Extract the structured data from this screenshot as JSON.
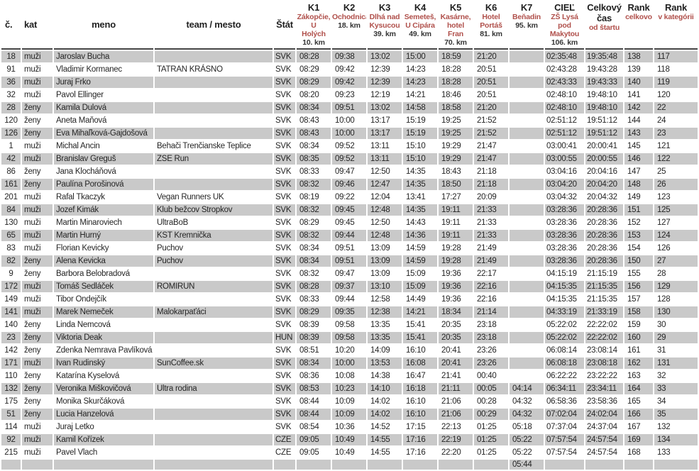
{
  "table": {
    "columns": [
      {
        "key": "cislo",
        "title": "č.",
        "loc": "",
        "km": ""
      },
      {
        "key": "kat",
        "title": "kat",
        "loc": "",
        "km": ""
      },
      {
        "key": "meno",
        "title": "meno",
        "loc": "",
        "km": ""
      },
      {
        "key": "team",
        "title": "team / mesto",
        "loc": "",
        "km": ""
      },
      {
        "key": "stat",
        "title": "Štát",
        "loc": "",
        "km": ""
      },
      {
        "key": "k1",
        "title": "K1",
        "loc": "Zákopčie, U\nHolých",
        "km": "10. km"
      },
      {
        "key": "k2",
        "title": "K2",
        "loc": "Ochodnica",
        "km": "18. km"
      },
      {
        "key": "k3",
        "title": "K3",
        "loc": "Dlhá nad\nKysucou",
        "km": "39. km"
      },
      {
        "key": "k4",
        "title": "K4",
        "loc": "Semeteš,\nU Cipára",
        "km": "49. km"
      },
      {
        "key": "k5",
        "title": "K5",
        "loc": "Kasárne,\nhotel Fran",
        "km": "70. km"
      },
      {
        "key": "k6",
        "title": "K6",
        "loc": "Hotel\nPortáš",
        "km": "81. km"
      },
      {
        "key": "k7",
        "title": "K7",
        "loc": "Beňadin",
        "km": "95. km"
      },
      {
        "key": "ciel",
        "title": "CIEĽ",
        "loc": "ZŠ Lysá\npod\nMakytou",
        "km": "106. km"
      },
      {
        "key": "celkovy",
        "title": "Celkový čas",
        "loc": "od štartu",
        "km": ""
      },
      {
        "key": "rank",
        "title": "Rank",
        "loc": "celkovo",
        "km": ""
      },
      {
        "key": "rankkat",
        "title": "Rank",
        "loc": "v kategórii",
        "km": ""
      }
    ],
    "rows": [
      [
        "18",
        "muži",
        "Jaroslav Bucha",
        "",
        "SVK",
        "08:28",
        "09:38",
        "13:02",
        "15:00",
        "18:59",
        "21:20",
        "",
        "02:35:48",
        "19:35:48",
        "138",
        "117"
      ],
      [
        "91",
        "muži",
        "Vladimir Kormanec",
        "TATRAN KRÁSNO",
        "SVK",
        "08:29",
        "09:42",
        "12:39",
        "14:23",
        "18:28",
        "20:51",
        "",
        "02:43:28",
        "19:43:28",
        "139",
        "118"
      ],
      [
        "36",
        "muži",
        "Juraj Frko",
        "",
        "SVK",
        "08:29",
        "09:42",
        "12:39",
        "14:23",
        "18:28",
        "20:51",
        "",
        "02:43:33",
        "19:43:33",
        "140",
        "119"
      ],
      [
        "32",
        "muži",
        "Pavol Ellinger",
        "",
        "SVK",
        "08:20",
        "09:23",
        "12:19",
        "14:21",
        "18:46",
        "20:51",
        "",
        "02:48:10",
        "19:48:10",
        "141",
        "120"
      ],
      [
        "28",
        "ženy",
        "Kamila Dulová",
        "",
        "SVK",
        "08:34",
        "09:51",
        "13:02",
        "14:58",
        "18:58",
        "21:20",
        "",
        "02:48:10",
        "19:48:10",
        "142",
        "22"
      ],
      [
        "120",
        "ženy",
        "Aneta Maňová",
        "",
        "SVK",
        "08:43",
        "10:00",
        "13:17",
        "15:19",
        "19:25",
        "21:52",
        "",
        "02:51:12",
        "19:51:12",
        "144",
        "24"
      ],
      [
        "126",
        "ženy",
        "Eva Mihaľková-Gajdošová",
        "",
        "SVK",
        "08:43",
        "10:00",
        "13:17",
        "15:19",
        "19:25",
        "21:52",
        "",
        "02:51:12",
        "19:51:12",
        "143",
        "23"
      ],
      [
        "1",
        "muži",
        "Michal Ancin",
        "Behači Trenčianske Teplice",
        "SVK",
        "08:34",
        "09:52",
        "13:11",
        "15:10",
        "19:29",
        "21:47",
        "",
        "03:00:41",
        "20:00:41",
        "145",
        "121"
      ],
      [
        "42",
        "muži",
        "Branislav Greguš",
        "ZSE Run",
        "SVK",
        "08:35",
        "09:52",
        "13:11",
        "15:10",
        "19:29",
        "21:47",
        "",
        "03:00:55",
        "20:00:55",
        "146",
        "122"
      ],
      [
        "86",
        "ženy",
        "Jana Klocháňová",
        "",
        "SVK",
        "08:33",
        "09:47",
        "12:50",
        "14:35",
        "18:43",
        "21:18",
        "",
        "03:04:16",
        "20:04:16",
        "147",
        "25"
      ],
      [
        "161",
        "ženy",
        "Paulína Porošinová",
        "",
        "SVK",
        "08:32",
        "09:46",
        "12:47",
        "14:35",
        "18:50",
        "21:18",
        "",
        "03:04:20",
        "20:04:20",
        "148",
        "26"
      ],
      [
        "201",
        "muži",
        "Rafal Tkaczyk",
        "Vegan Runners UK",
        "SVK",
        "08:19",
        "09:22",
        "12:04",
        "13:41",
        "17:27",
        "20:09",
        "",
        "03:04:32",
        "20:04:32",
        "149",
        "123"
      ],
      [
        "84",
        "muži",
        "Jozef Kimák",
        "Klub bežcov Stropkov",
        "SVK",
        "08:32",
        "09:45",
        "12:48",
        "14:35",
        "19:11",
        "21:33",
        "",
        "03:28:36",
        "20:28:36",
        "151",
        "125"
      ],
      [
        "130",
        "muži",
        "Martin Minaroviech",
        "UltraBoB",
        "SVK",
        "08:29",
        "09:45",
        "12:50",
        "14:43",
        "19:11",
        "21:33",
        "",
        "03:28:36",
        "20:28:36",
        "152",
        "127"
      ],
      [
        "65",
        "muži",
        "Martin Hurný",
        "KST Kremnička",
        "SVK",
        "08:32",
        "09:44",
        "12:48",
        "14:36",
        "19:11",
        "21:33",
        "",
        "03:28:36",
        "20:28:36",
        "153",
        "124"
      ],
      [
        "83",
        "muži",
        "Florian Kevicky",
        "Puchov",
        "SVK",
        "08:34",
        "09:51",
        "13:09",
        "14:59",
        "19:28",
        "21:49",
        "",
        "03:28:36",
        "20:28:36",
        "154",
        "126"
      ],
      [
        "82",
        "ženy",
        "Alena Kevicka",
        "Puchov",
        "SVK",
        "08:34",
        "09:51",
        "13:09",
        "14:59",
        "19:28",
        "21:49",
        "",
        "03:28:36",
        "20:28:36",
        "150",
        "27"
      ],
      [
        "9",
        "ženy",
        "Barbora Belobradová",
        "",
        "SVK",
        "08:32",
        "09:47",
        "13:09",
        "15:09",
        "19:36",
        "22:17",
        "",
        "04:15:19",
        "21:15:19",
        "155",
        "28"
      ],
      [
        "172",
        "muži",
        "Tomáš Sedláček",
        "ROMIRUN",
        "SVK",
        "08:28",
        "09:37",
        "13:10",
        "15:09",
        "19:36",
        "22:16",
        "",
        "04:15:35",
        "21:15:35",
        "156",
        "129"
      ],
      [
        "149",
        "muži",
        "Tibor Ondejčík",
        "",
        "SVK",
        "08:33",
        "09:44",
        "12:58",
        "14:49",
        "19:36",
        "22:16",
        "",
        "04:15:35",
        "21:15:35",
        "157",
        "128"
      ],
      [
        "141",
        "muži",
        "Marek Nemeček",
        "Malokarpaťáci",
        "SVK",
        "08:29",
        "09:35",
        "12:38",
        "14:21",
        "18:34",
        "21:14",
        "",
        "04:33:19",
        "21:33:19",
        "158",
        "130"
      ],
      [
        "140",
        "ženy",
        "Linda Nemcová",
        "",
        "SVK",
        "08:39",
        "09:58",
        "13:35",
        "15:41",
        "20:35",
        "23:18",
        "",
        "05:22:02",
        "22:22:02",
        "159",
        "30"
      ],
      [
        "23",
        "ženy",
        "Viktoria Deak",
        "",
        "HUN",
        "08:39",
        "09:58",
        "13:35",
        "15:41",
        "20:35",
        "23:18",
        "",
        "05:22:02",
        "22:22:02",
        "160",
        "29"
      ],
      [
        "142",
        "ženy",
        "Zdenka Nemrava Pavlíková",
        "",
        "SVK",
        "08:51",
        "10:20",
        "14:09",
        "16:10",
        "20:41",
        "23:26",
        "",
        "06:08:14",
        "23:08:14",
        "161",
        "31"
      ],
      [
        "171",
        "muži",
        "Ivan Rudinský",
        "SunCoffee.sk",
        "SVK",
        "08:34",
        "10:00",
        "13:53",
        "16:08",
        "20:41",
        "23:26",
        "",
        "06:08:18",
        "23:08:18",
        "162",
        "131"
      ],
      [
        "110",
        "ženy",
        "Katarína Kyselová",
        "",
        "SVK",
        "08:36",
        "10:08",
        "14:38",
        "16:47",
        "21:41",
        "00:40",
        "",
        "06:22:22",
        "23:22:22",
        "163",
        "32"
      ],
      [
        "132",
        "ženy",
        "Veronika Miškovičová",
        "Ultra rodina",
        "SVK",
        "08:53",
        "10:23",
        "14:10",
        "16:18",
        "21:11",
        "00:05",
        "04:14",
        "06:34:11",
        "23:34:11",
        "164",
        "33"
      ],
      [
        "175",
        "ženy",
        "Monika Skurčáková",
        "",
        "SVK",
        "08:44",
        "10:09",
        "14:02",
        "16:10",
        "21:06",
        "00:28",
        "04:32",
        "06:58:36",
        "23:58:36",
        "165",
        "34"
      ],
      [
        "51",
        "ženy",
        "Lucia Hanzelová",
        "",
        "SVK",
        "08:44",
        "10:09",
        "14:02",
        "16:10",
        "21:06",
        "00:29",
        "04:32",
        "07:02:04",
        "24:02:04",
        "166",
        "35"
      ],
      [
        "114",
        "muži",
        "Juraj Letko",
        "",
        "SVK",
        "08:54",
        "10:36",
        "14:52",
        "17:15",
        "22:13",
        "01:25",
        "05:18",
        "07:37:04",
        "24:37:04",
        "167",
        "132"
      ],
      [
        "92",
        "muži",
        "Kamil Kořízek",
        "",
        "CZE",
        "09:05",
        "10:49",
        "14:55",
        "17:16",
        "22:19",
        "01:25",
        "05:22",
        "07:57:54",
        "24:57:54",
        "169",
        "134"
      ],
      [
        "215",
        "muži",
        "Pavel Vlach",
        "",
        "CZE",
        "09:05",
        "10:49",
        "14:55",
        "17:16",
        "22:20",
        "01:25",
        "05:22",
        "07:57:54",
        "24:57:54",
        "168",
        "133"
      ]
    ],
    "partial_row": [
      "",
      "",
      "",
      "",
      "",
      "",
      "",
      "",
      "",
      "",
      "",
      "05:44",
      "",
      "",
      "",
      ""
    ]
  },
  "colors": {
    "row_stripe": "#c9c9c9",
    "header_accent": "#b0504b",
    "header_rule": "#454545"
  }
}
